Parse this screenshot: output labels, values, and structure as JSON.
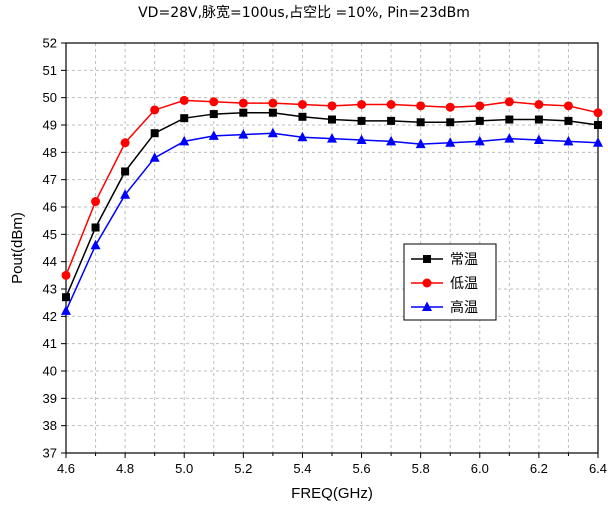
{
  "chart_data": {
    "type": "line",
    "title": "VD=28V,脉宽=100us,占空比 =10%, Pin=23dBm",
    "xlabel": "FREQ(GHz)",
    "ylabel": "Pout(dBm)",
    "xlim": [
      4.6,
      6.4
    ],
    "ylim": [
      37,
      52
    ],
    "x_ticks": [
      "4.6",
      "4.8",
      "5.0",
      "5.2",
      "5.4",
      "5.6",
      "5.8",
      "6.0",
      "6.2",
      "6.4"
    ],
    "y_ticks": [
      "37",
      "38",
      "39",
      "40",
      "41",
      "42",
      "43",
      "44",
      "45",
      "46",
      "47",
      "48",
      "49",
      "50",
      "51",
      "52"
    ],
    "grid": true,
    "legend_position": "middle-right",
    "x": [
      4.6,
      4.7,
      4.8,
      4.9,
      5.0,
      5.1,
      5.2,
      5.3,
      5.4,
      5.5,
      5.6,
      5.7,
      5.8,
      5.9,
      6.0,
      6.1,
      6.2,
      6.3,
      6.4
    ],
    "series": [
      {
        "name": "常温",
        "color": "#000000",
        "marker": "square",
        "values": [
          42.7,
          45.25,
          47.3,
          48.7,
          49.25,
          49.4,
          49.45,
          49.45,
          49.3,
          49.2,
          49.15,
          49.15,
          49.1,
          49.1,
          49.15,
          49.2,
          49.2,
          49.15,
          49.0
        ]
      },
      {
        "name": "低温",
        "color": "#ff0000",
        "marker": "circle",
        "values": [
          43.5,
          46.2,
          48.35,
          49.55,
          49.9,
          49.85,
          49.8,
          49.8,
          49.75,
          49.7,
          49.75,
          49.75,
          49.7,
          49.65,
          49.7,
          49.85,
          49.75,
          49.7,
          49.45
        ]
      },
      {
        "name": "高温",
        "color": "#0000ff",
        "marker": "triangle",
        "values": [
          42.2,
          44.6,
          46.45,
          47.8,
          48.4,
          48.6,
          48.65,
          48.7,
          48.55,
          48.5,
          48.45,
          48.4,
          48.3,
          48.35,
          48.4,
          48.5,
          48.45,
          48.4,
          48.35
        ]
      }
    ]
  }
}
